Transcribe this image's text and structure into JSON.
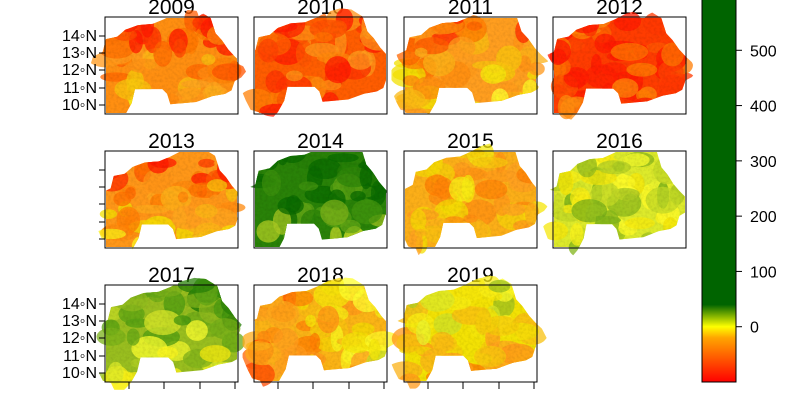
{
  "chart_data": {
    "type": "heatmap",
    "panels": [
      {
        "year": "2009",
        "level": 0.22,
        "pattern": "south-yellow"
      },
      {
        "year": "2010",
        "level": 0.1,
        "pattern": "uniform-dry"
      },
      {
        "year": "2011",
        "level": 0.28,
        "pattern": "south-yellow"
      },
      {
        "year": "2012",
        "level": 0.05,
        "pattern": "uniform-dry"
      },
      {
        "year": "2013",
        "level": 0.25,
        "pattern": "south-yellow"
      },
      {
        "year": "2014",
        "level": 0.93,
        "pattern": "north-wet"
      },
      {
        "year": "2015",
        "level": 0.32,
        "pattern": "patchy"
      },
      {
        "year": "2016",
        "level": 0.62,
        "pattern": "patchy"
      },
      {
        "year": "2017",
        "level": 0.72,
        "pattern": "north-wet"
      },
      {
        "year": "2018",
        "level": 0.33,
        "pattern": "east-wet"
      },
      {
        "year": "2019",
        "level": 0.44,
        "pattern": "north-wet"
      }
    ],
    "lat_tick_labels": [
      "14◦N",
      "13◦N",
      "12◦N",
      "11◦N",
      "10◦N"
    ],
    "colorbar": {
      "ticks": [
        500,
        400,
        300,
        200,
        100,
        0
      ],
      "range": [
        -100,
        600
      ],
      "colors": [
        "#ff0000",
        "#ffa500",
        "#ffff00",
        "#006400"
      ],
      "stops": [
        -100,
        -20,
        0,
        40,
        600
      ]
    }
  }
}
